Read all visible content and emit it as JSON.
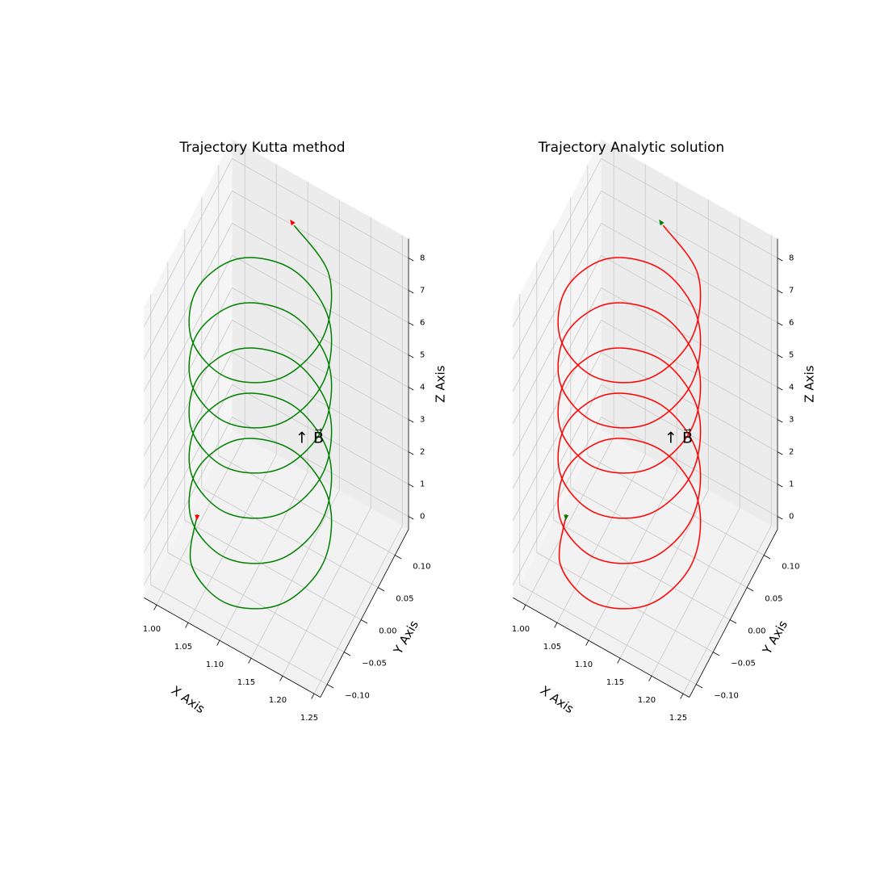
{
  "chart_data": [
    {
      "type": "line3d",
      "title": "Trajectory Kutta method",
      "xlabel": "X Axis",
      "ylabel": "Y Axis",
      "zlabel": "Z Axis",
      "annotation": "↑ B⃗",
      "annotation_color": "#0000ff",
      "arrow_color": "#ff0000",
      "grid": true,
      "xlim": [
        0.98,
        1.26
      ],
      "ylim": [
        -0.12,
        0.14
      ],
      "zlim": [
        -0.4,
        8.6
      ],
      "xticks": [
        {
          "value": 1.0,
          "label": "1.00"
        },
        {
          "value": 1.05,
          "label": "1.05"
        },
        {
          "value": 1.1,
          "label": "1.10"
        },
        {
          "value": 1.15,
          "label": "1.15"
        },
        {
          "value": 1.2,
          "label": "1.20"
        },
        {
          "value": 1.25,
          "label": "1.25"
        }
      ],
      "yticks": [
        {
          "value": -0.1,
          "label": "−0.10"
        },
        {
          "value": -0.05,
          "label": "−0.05"
        },
        {
          "value": 0,
          "label": "0.00"
        },
        {
          "value": 0.05,
          "label": "0.05"
        },
        {
          "value": 0.1,
          "label": "0.10"
        }
      ],
      "zticks": [
        0,
        1,
        2,
        3,
        4,
        5,
        6,
        7,
        8
      ],
      "series": [
        {
          "color": "#008000",
          "x": [
            1.0,
            1.029,
            1.1,
            1.171,
            1.2,
            1.171,
            1.1,
            1.029,
            1.0,
            1.029,
            1.1,
            1.171,
            1.2,
            1.171,
            1.1,
            1.029,
            1.0,
            1.029,
            1.1,
            1.171,
            1.2,
            1.171,
            1.1,
            1.029,
            1.0,
            1.029,
            1.1,
            1.171,
            1.2,
            1.171,
            1.1,
            1.029,
            1.0,
            1.029,
            1.1,
            1.171,
            1.2,
            1.171,
            1.1,
            1.029,
            1.0,
            1.029,
            1.1,
            1.171,
            1.2,
            1.171,
            1.1
          ],
          "y": [
            0,
            -0.071,
            -0.1,
            -0.071,
            0,
            0.071,
            0.1,
            0.071,
            0,
            -0.071,
            -0.1,
            -0.071,
            0,
            0.071,
            0.1,
            0.071,
            0,
            -0.071,
            -0.1,
            -0.071,
            0,
            0.071,
            0.1,
            0.071,
            0,
            -0.071,
            -0.1,
            -0.071,
            0,
            0.071,
            0.1,
            0.071,
            0,
            -0.071,
            -0.1,
            -0.071,
            0,
            0.071,
            0.1,
            0.071,
            0,
            -0.071,
            -0.1,
            -0.071,
            0,
            0.071,
            0.1
          ],
          "z": [
            0,
            0.175,
            0.35,
            0.525,
            0.7,
            0.875,
            1.05,
            1.225,
            1.4,
            1.575,
            1.75,
            1.925,
            2.1,
            2.275,
            2.45,
            2.625,
            2.8,
            2.975,
            3.15,
            3.325,
            3.5,
            3.675,
            3.85,
            4.025,
            4.2,
            4.375,
            4.55,
            4.725,
            4.9,
            5.075,
            5.25,
            5.425,
            5.6,
            5.775,
            5.95,
            6.125,
            6.3,
            6.475,
            6.65,
            6.825,
            7.0,
            7.175,
            7.35,
            7.525,
            7.7,
            7.875,
            8.05
          ]
        }
      ]
    },
    {
      "type": "line3d",
      "title": "Trajectory Analytic solution",
      "xlabel": "X Axis",
      "ylabel": "Y Axis",
      "zlabel": "Z Axis",
      "annotation": "↑ B⃗",
      "annotation_color": "#0000ff",
      "arrow_color": "#008000",
      "grid": true,
      "xlim": [
        0.98,
        1.26
      ],
      "ylim": [
        -0.12,
        0.14
      ],
      "zlim": [
        -0.4,
        8.6
      ],
      "xticks": [
        {
          "value": 1.0,
          "label": "1.00"
        },
        {
          "value": 1.05,
          "label": "1.05"
        },
        {
          "value": 1.1,
          "label": "1.10"
        },
        {
          "value": 1.15,
          "label": "1.15"
        },
        {
          "value": 1.2,
          "label": "1.20"
        },
        {
          "value": 1.25,
          "label": "1.25"
        }
      ],
      "yticks": [
        {
          "value": -0.1,
          "label": "−0.10"
        },
        {
          "value": -0.05,
          "label": "−0.05"
        },
        {
          "value": 0,
          "label": "0.00"
        },
        {
          "value": 0.05,
          "label": "0.05"
        },
        {
          "value": 0.1,
          "label": "0.10"
        }
      ],
      "zticks": [
        0,
        1,
        2,
        3,
        4,
        5,
        6,
        7,
        8
      ],
      "series": [
        {
          "color": "#ff0000",
          "x": [
            1.0,
            1.029,
            1.1,
            1.171,
            1.2,
            1.171,
            1.1,
            1.029,
            1.0,
            1.029,
            1.1,
            1.171,
            1.2,
            1.171,
            1.1,
            1.029,
            1.0,
            1.029,
            1.1,
            1.171,
            1.2,
            1.171,
            1.1,
            1.029,
            1.0,
            1.029,
            1.1,
            1.171,
            1.2,
            1.171,
            1.1,
            1.029,
            1.0,
            1.029,
            1.1,
            1.171,
            1.2,
            1.171,
            1.1,
            1.029,
            1.0,
            1.029,
            1.1,
            1.171,
            1.2,
            1.171,
            1.1
          ],
          "y": [
            0,
            -0.071,
            -0.1,
            -0.071,
            0,
            0.071,
            0.1,
            0.071,
            0,
            -0.071,
            -0.1,
            -0.071,
            0,
            0.071,
            0.1,
            0.071,
            0,
            -0.071,
            -0.1,
            -0.071,
            0,
            0.071,
            0.1,
            0.071,
            0,
            -0.071,
            -0.1,
            -0.071,
            0,
            0.071,
            0.1,
            0.071,
            0,
            -0.071,
            -0.1,
            -0.071,
            0,
            0.071,
            0.1,
            0.071,
            0,
            -0.071,
            -0.1,
            -0.071,
            0,
            0.071,
            0.1
          ],
          "z": [
            0,
            0.175,
            0.35,
            0.525,
            0.7,
            0.875,
            1.05,
            1.225,
            1.4,
            1.575,
            1.75,
            1.925,
            2.1,
            2.275,
            2.45,
            2.625,
            2.8,
            2.975,
            3.15,
            3.325,
            3.5,
            3.675,
            3.85,
            4.025,
            4.2,
            4.375,
            4.55,
            4.725,
            4.9,
            5.075,
            5.25,
            5.425,
            5.6,
            5.775,
            5.95,
            6.125,
            6.3,
            6.475,
            6.65,
            6.825,
            7.0,
            7.175,
            7.35,
            7.525,
            7.7,
            7.875,
            8.05
          ]
        }
      ]
    }
  ]
}
